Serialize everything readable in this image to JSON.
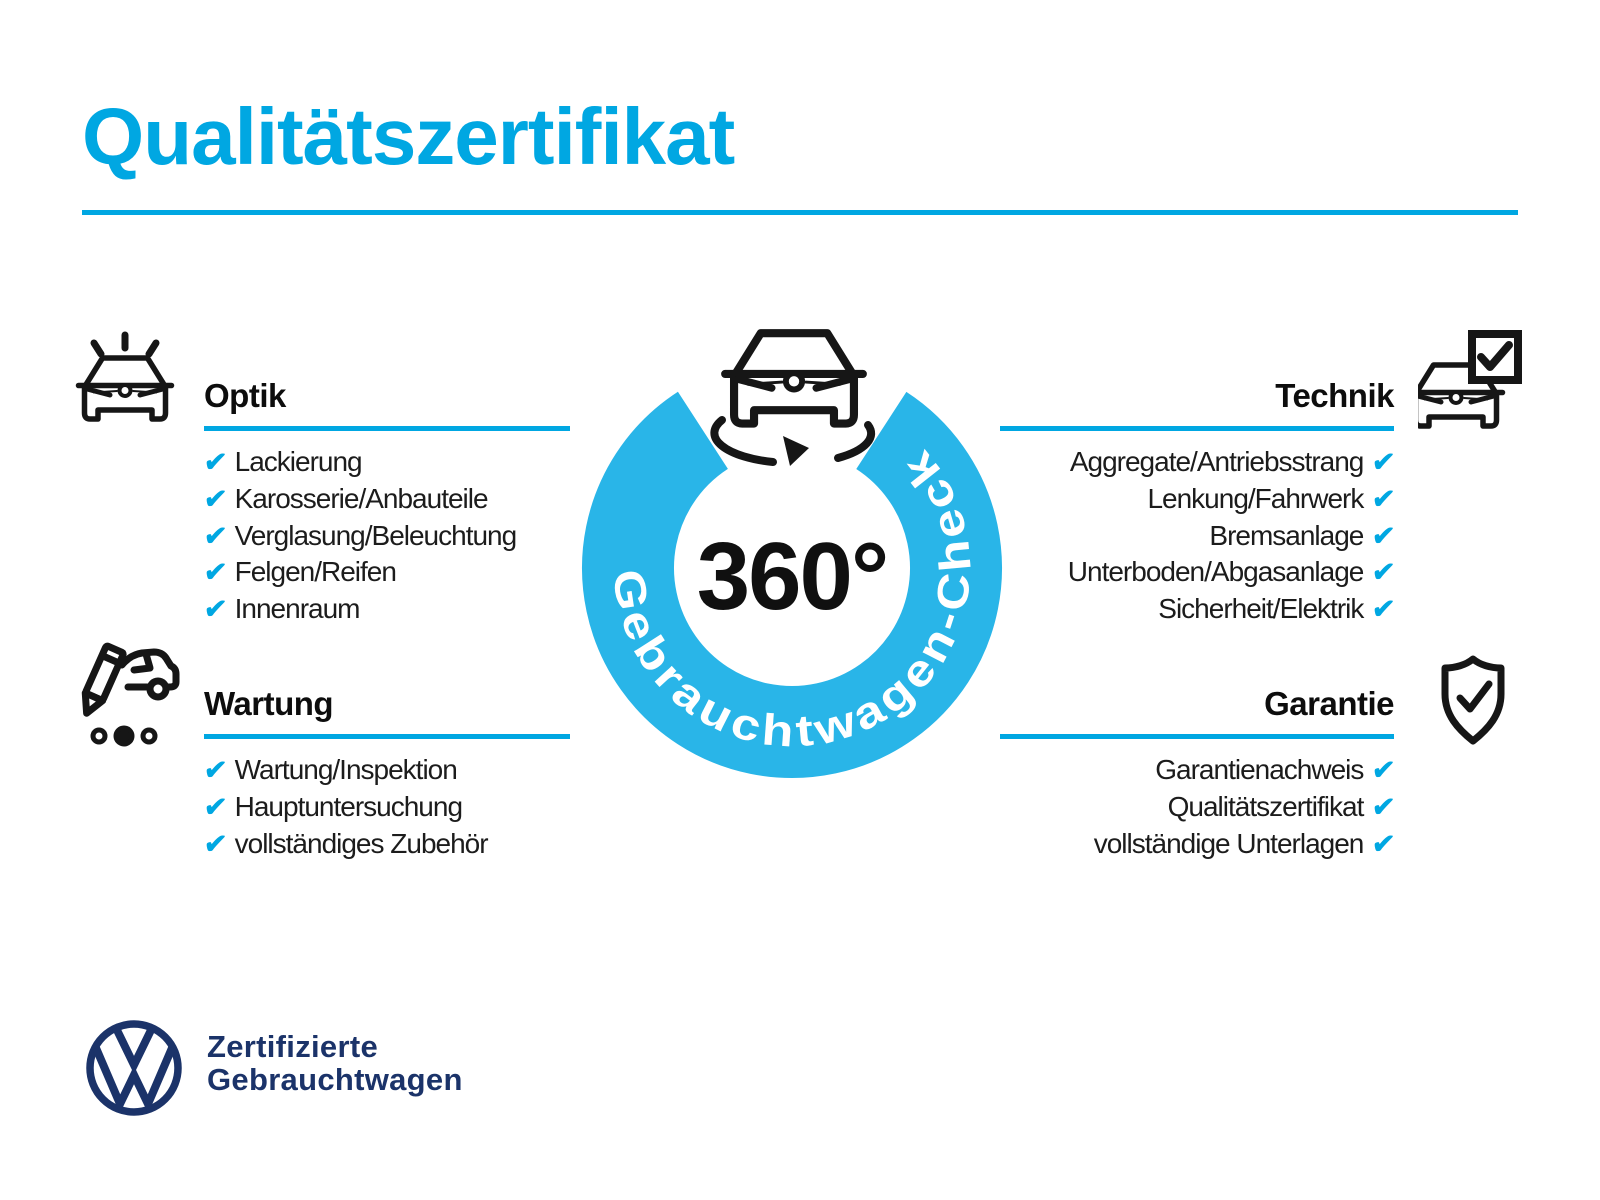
{
  "title": "Qualitätszertifikat",
  "badge": {
    "center_label": "360°",
    "ring_text": "Gebrauchtwagen-Check",
    "icon": "car-rotate-360-icon"
  },
  "sections": {
    "optik": {
      "heading": "Optik",
      "icon": "car-shine-icon",
      "items": [
        "Lackierung",
        "Karosserie/Anbauteile",
        "Verglasung/Beleuchtung",
        "Felgen/Reifen",
        "Innenraum"
      ]
    },
    "technik": {
      "heading": "Technik",
      "icon": "car-checkbox-icon",
      "items": [
        "Aggregate/Antriebsstrang",
        "Lenkung/Fahrwerk",
        "Bremsanlage",
        "Unterboden/Abgasanlage",
        "Sicherheit/Elektrik"
      ]
    },
    "wartung": {
      "heading": "Wartung",
      "icon": "pencil-car-service-icon",
      "items": [
        "Wartung/Inspektion",
        "Hauptuntersuchung",
        "vollständiges Zubehör"
      ]
    },
    "garantie": {
      "heading": "Garantie",
      "icon": "shield-check-icon",
      "items": [
        "Garantienachweis",
        "Qualitätszertifikat",
        "vollständige Unterlagen"
      ]
    }
  },
  "footer": {
    "logo": "vw-logo",
    "line1": "Zertifizierte",
    "line2": "Gebrauchtwagen"
  },
  "check_glyph": "✔",
  "colors": {
    "accent": "#00a7e2",
    "ring": "#29b5e8",
    "navy": "#1b3369",
    "ink": "#161616"
  }
}
